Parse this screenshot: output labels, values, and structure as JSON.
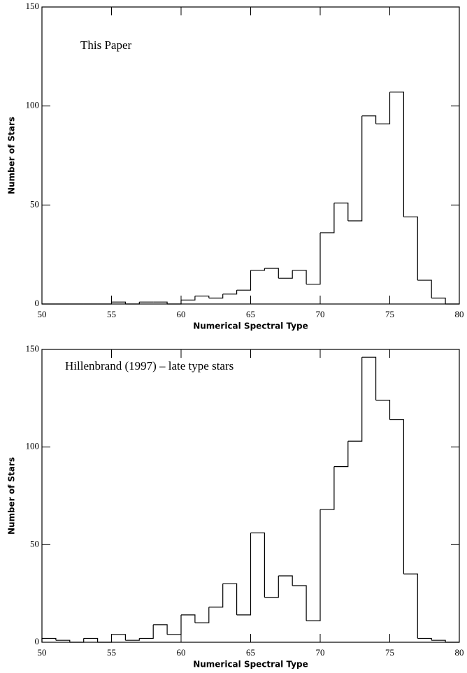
{
  "chart_data": [
    {
      "type": "histogram",
      "annotation": "This Paper",
      "xlabel": "Numerical Spectral Type",
      "ylabel": "Number of Stars",
      "bins": [
        50,
        51,
        52,
        53,
        54,
        55,
        56,
        57,
        58,
        59,
        60,
        61,
        62,
        63,
        64,
        65,
        66,
        67,
        68,
        69,
        70,
        71,
        72,
        73,
        74,
        75,
        76,
        77,
        78,
        79,
        80
      ],
      "values": [
        0,
        0,
        0,
        0,
        0,
        1,
        0,
        1,
        1,
        0,
        2,
        4,
        3,
        5,
        7,
        17,
        18,
        13,
        17,
        10,
        36,
        51,
        42,
        95,
        91,
        107,
        44,
        12,
        3,
        0
      ],
      "color": "#000000",
      "xlim": [
        50,
        80
      ],
      "ylim": [
        0,
        150
      ],
      "xticks": [
        50,
        55,
        60,
        65,
        70,
        75,
        80
      ],
      "yticks": [
        0,
        50,
        100,
        150
      ]
    },
    {
      "type": "histogram",
      "annotation": "Hillenbrand (1997) – late type stars",
      "xlabel": "Numerical Spectral Type",
      "ylabel": "Number of Stars",
      "bins": [
        50,
        51,
        52,
        53,
        54,
        55,
        56,
        57,
        58,
        59,
        60,
        61,
        62,
        63,
        64,
        65,
        66,
        67,
        68,
        69,
        70,
        71,
        72,
        73,
        74,
        75,
        76,
        77,
        78,
        79,
        80
      ],
      "values": [
        2,
        1,
        0,
        2,
        0,
        4,
        1,
        2,
        9,
        4,
        14,
        10,
        18,
        30,
        14,
        56,
        23,
        34,
        29,
        11,
        68,
        90,
        103,
        146,
        124,
        114,
        35,
        2,
        1,
        0
      ],
      "color": "#000000",
      "xlim": [
        50,
        80
      ],
      "ylim": [
        0,
        150
      ],
      "xticks": [
        50,
        55,
        60,
        65,
        70,
        75,
        80
      ],
      "yticks": [
        0,
        50,
        100,
        150
      ]
    }
  ]
}
